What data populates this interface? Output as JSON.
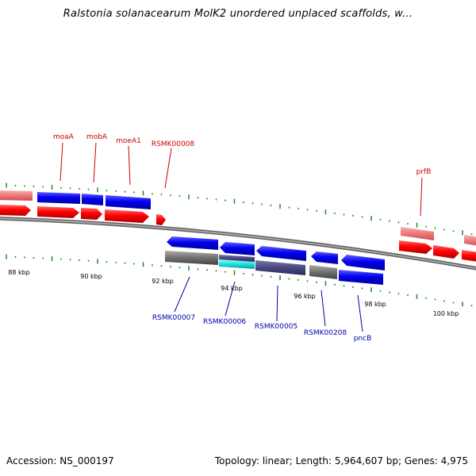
{
  "title": "Ralstonia solanacearum MolK2 unordered unplaced scaffolds, w...",
  "footer": {
    "accession": "Accession: NS_000197",
    "stats": "Topology: linear; Length: 5,964,607 bp; Genes: 4,975"
  },
  "colors": {
    "upper_label": "#cc0000",
    "lower_label": "#0000aa",
    "forward_gene": "#ff0000",
    "reverse_gene": "#0000ee",
    "forward_feature_pale": "#f08080",
    "feature_gray": "#707070",
    "feature_cyan": "#22dddd",
    "feature_slate": "#484880",
    "tick": "#228822",
    "backbone": "#999999"
  },
  "scale_labels": [
    "88 kbp",
    "90 kbp",
    "92 kbp",
    "94 kbp",
    "96 kbp",
    "98 kbp",
    "100 kbp"
  ],
  "upper_genes": [
    {
      "name": "moaA"
    },
    {
      "name": "mobA"
    },
    {
      "name": "moeA1"
    },
    {
      "name": "RSMK00008"
    },
    {
      "name": "prfB"
    }
  ],
  "lower_genes": [
    {
      "name": "RSMK00007"
    },
    {
      "name": "RSMK00006"
    },
    {
      "name": "RSMK00005"
    },
    {
      "name": "RSMK00208"
    },
    {
      "name": "pncB"
    }
  ]
}
